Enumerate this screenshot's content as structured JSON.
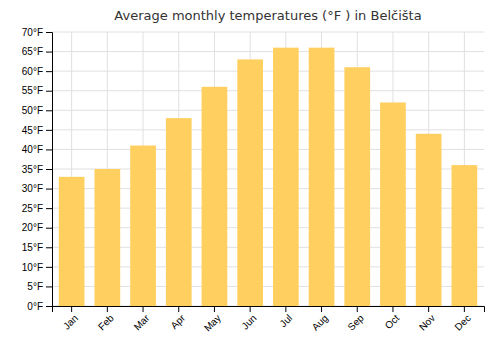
{
  "chart_data": {
    "type": "bar",
    "title": "Average monthly temperatures (°F ) in Belčišta",
    "categories": [
      "Jan",
      "Feb",
      "Mar",
      "Apr",
      "May",
      "Jun",
      "Jul",
      "Aug",
      "Sep",
      "Oct",
      "Nov",
      "Dec"
    ],
    "values": [
      33,
      35,
      41,
      48,
      56,
      63,
      66,
      66,
      61,
      52,
      44,
      36
    ],
    "color": "#FFD060",
    "ylim": [
      0,
      70
    ],
    "yticks": [
      {
        "value": 0,
        "label": "0°F"
      },
      {
        "value": 5,
        "label": "5°F"
      },
      {
        "value": 10,
        "label": "10°F"
      },
      {
        "value": 15,
        "label": "15°F"
      },
      {
        "value": 20,
        "label": "20°F"
      },
      {
        "value": 25,
        "label": "25°F"
      },
      {
        "value": 30,
        "label": "30°F"
      },
      {
        "value": 35,
        "label": "35°F"
      },
      {
        "value": 40,
        "label": "40°F"
      },
      {
        "value": 45,
        "label": "45°F"
      },
      {
        "value": 50,
        "label": "50°F"
      },
      {
        "value": 55,
        "label": "55°F"
      },
      {
        "value": 60,
        "label": "60°F"
      },
      {
        "value": 65,
        "label": "65°F"
      },
      {
        "value": 70,
        "label": "70°F"
      }
    ],
    "grid": true
  }
}
